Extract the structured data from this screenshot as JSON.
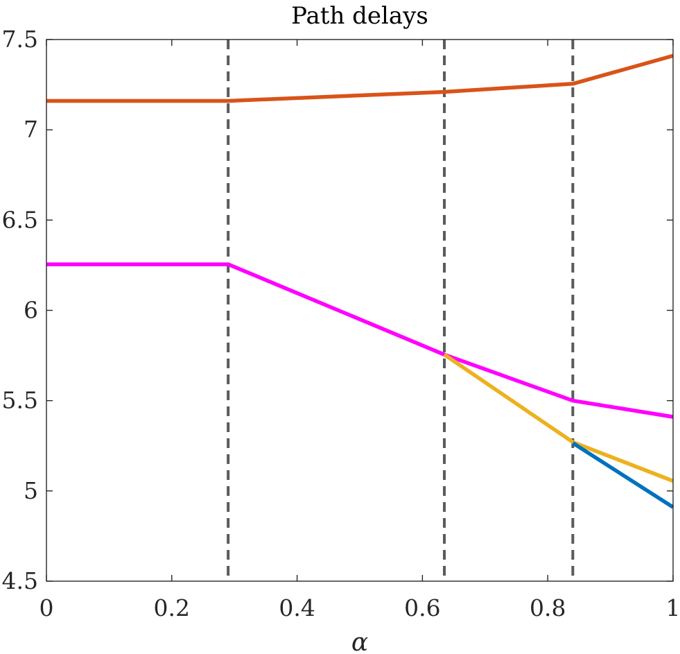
{
  "chart_data": {
    "type": "line",
    "title": "Path delays",
    "xlabel": "α",
    "ylabel": "",
    "xlim": [
      0,
      1
    ],
    "ylim": [
      4.5,
      7.5
    ],
    "xticks": [
      0,
      0.2,
      0.4,
      0.6,
      0.8,
      1
    ],
    "xtick_labels": [
      "0",
      "0.2",
      "0.4",
      "0.6",
      "0.8",
      "1"
    ],
    "yticks": [
      4.5,
      5,
      5.5,
      6,
      6.5,
      7,
      7.5
    ],
    "ytick_labels": [
      "4.5",
      "5",
      "5.5",
      "6",
      "6.5",
      "7",
      "7.5"
    ],
    "grid": false,
    "legend": "none",
    "vlines": [
      0.29,
      0.635,
      0.84
    ],
    "vline_color": "#5a5a5a",
    "series": [
      {
        "color": "#d95319",
        "x": [
          0,
          0.29,
          0.635,
          0.84,
          1
        ],
        "y": [
          7.16,
          7.16,
          7.21,
          7.255,
          7.41
        ]
      },
      {
        "color": "#ff00ff",
        "x": [
          0,
          0.29,
          0.635,
          0.84,
          1
        ],
        "y": [
          6.255,
          6.255,
          5.755,
          5.5,
          5.41
        ]
      },
      {
        "color": "#edb120",
        "x": [
          0.635,
          0.84,
          1
        ],
        "y": [
          5.755,
          5.27,
          5.055
        ]
      },
      {
        "color": "#0072bd",
        "x": [
          0.84,
          1
        ],
        "y": [
          5.265,
          4.91
        ]
      }
    ]
  }
}
